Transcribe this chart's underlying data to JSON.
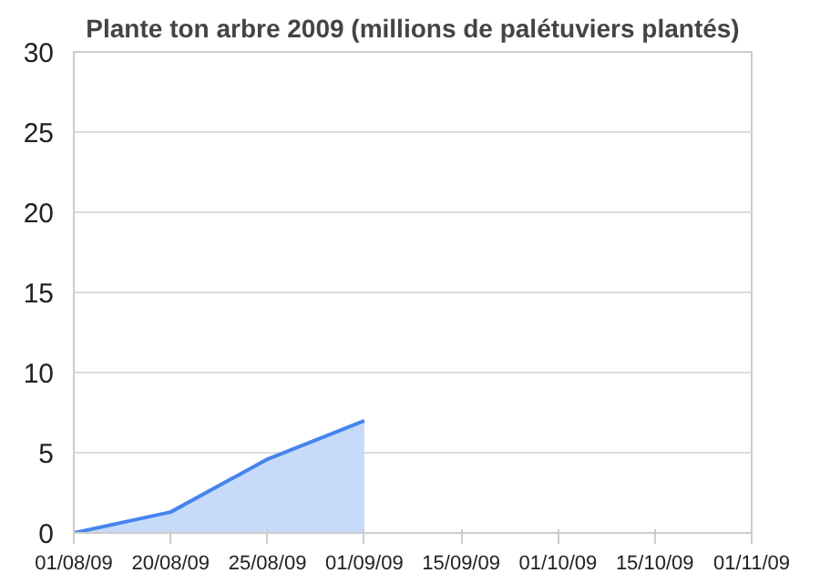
{
  "chart_data": {
    "type": "area",
    "title": "Plante ton arbre 2009 (millions de palétuviers plantés)",
    "categories": [
      "01/08/09",
      "20/08/09",
      "25/08/09",
      "01/09/09",
      "15/09/09",
      "01/10/09",
      "15/10/09",
      "01/11/09"
    ],
    "series": [
      {
        "color": "#4684ee",
        "values": [
          0,
          1.3,
          4.6,
          7.0,
          null,
          null,
          null,
          null
        ]
      }
    ],
    "ylim": [
      0,
      30
    ],
    "yticks": [
      0,
      5,
      10,
      15,
      20,
      25,
      30
    ],
    "grid": "y"
  }
}
